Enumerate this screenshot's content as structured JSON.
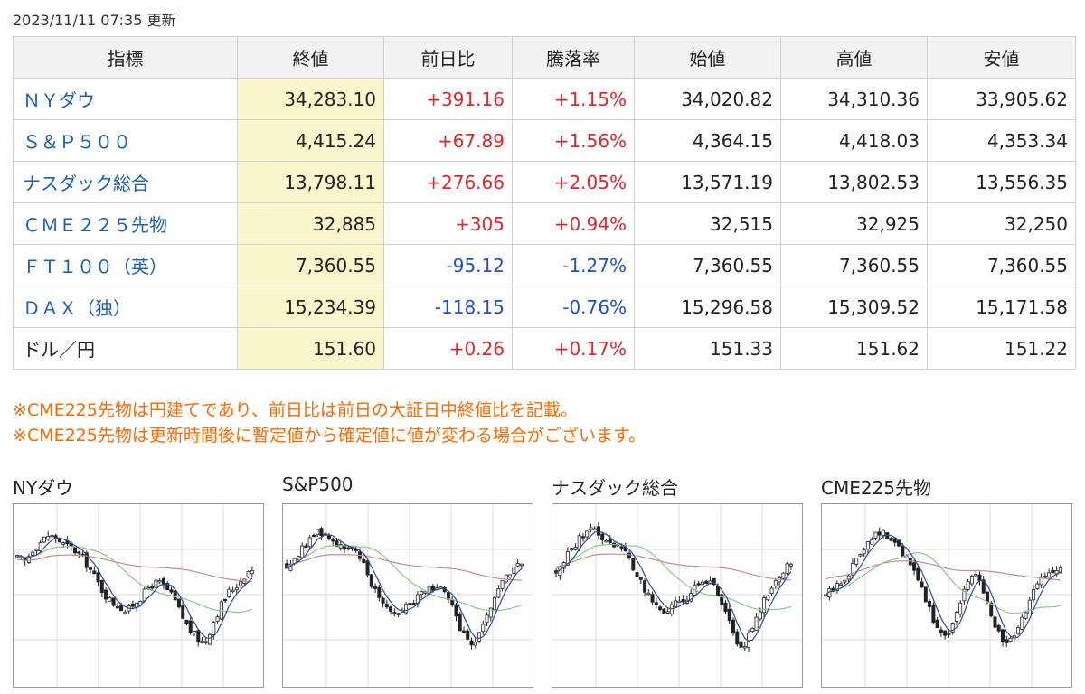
{
  "updated": "2023/11/11 07:35 更新",
  "headers": [
    "指標",
    "終値",
    "前日比",
    "騰落率",
    "始値",
    "高値",
    "安値"
  ],
  "rows": [
    {
      "name": "ＮＹダウ",
      "close": "34,283.10",
      "change": "+391.16",
      "pct": "+1.15%",
      "open": "34,020.82",
      "high": "34,310.36",
      "low": "33,905.62",
      "dir": "pos",
      "link": true
    },
    {
      "name": "Ｓ＆Ｐ５００",
      "close": "4,415.24",
      "change": "+67.89",
      "pct": "+1.56%",
      "open": "4,364.15",
      "high": "4,418.03",
      "low": "4,353.34",
      "dir": "pos",
      "link": true
    },
    {
      "name": "ナスダック総合",
      "close": "13,798.11",
      "change": "+276.66",
      "pct": "+2.05%",
      "open": "13,571.19",
      "high": "13,802.53",
      "low": "13,556.35",
      "dir": "pos",
      "link": true
    },
    {
      "name": "ＣＭＥ２２５先物",
      "close": "32,885",
      "change": "+305",
      "pct": "+0.94%",
      "open": "32,515",
      "high": "32,925",
      "low": "32,250",
      "dir": "pos",
      "link": true
    },
    {
      "name": "ＦＴ１００（英）",
      "close": "7,360.55",
      "change": "-95.12",
      "pct": "-1.27%",
      "open": "7,360.55",
      "high": "7,360.55",
      "low": "7,360.55",
      "dir": "neg",
      "link": true
    },
    {
      "name": "ＤＡＸ（独）",
      "close": "15,234.39",
      "change": "-118.15",
      "pct": "-0.76%",
      "open": "15,296.58",
      "high": "15,309.52",
      "low": "15,171.58",
      "dir": "neg",
      "link": true
    },
    {
      "name": "ドル／円",
      "close": "151.60",
      "change": "+0.26",
      "pct": "+0.17%",
      "open": "151.33",
      "high": "151.62",
      "low": "151.22",
      "dir": "pos",
      "link": false
    }
  ],
  "notes": [
    "※CME225先物は円建てであり、前日比は前日の大証日中終値比を記載。",
    "※CME225先物は更新時間後に暫定値から確定値に値が変わる場合がございます。"
  ],
  "colors": {
    "up": "#e0262b",
    "down": "#2350c8",
    "link": "#1a5fb4",
    "note": "#ff6a00",
    "close_bg": "#fbf7cc"
  },
  "charts": [
    {
      "title": "NYダウ",
      "shape": [
        0.72,
        0.7,
        0.78,
        0.82,
        0.86,
        0.84,
        0.8,
        0.78,
        0.74,
        0.68,
        0.6,
        0.52,
        0.46,
        0.44,
        0.4,
        0.46,
        0.5,
        0.56,
        0.58,
        0.54,
        0.48,
        0.38,
        0.3,
        0.24,
        0.22,
        0.34,
        0.44,
        0.52,
        0.56,
        0.62,
        0.66
      ]
    },
    {
      "title": "S&P500",
      "shape": [
        0.68,
        0.72,
        0.78,
        0.84,
        0.88,
        0.86,
        0.82,
        0.8,
        0.78,
        0.74,
        0.66,
        0.56,
        0.48,
        0.42,
        0.4,
        0.44,
        0.46,
        0.5,
        0.54,
        0.56,
        0.52,
        0.44,
        0.32,
        0.24,
        0.2,
        0.3,
        0.42,
        0.54,
        0.6,
        0.66,
        0.7
      ]
    },
    {
      "title": "ナスダック総合",
      "shape": [
        0.64,
        0.7,
        0.78,
        0.84,
        0.9,
        0.88,
        0.84,
        0.82,
        0.8,
        0.74,
        0.66,
        0.56,
        0.48,
        0.42,
        0.4,
        0.44,
        0.46,
        0.5,
        0.56,
        0.6,
        0.56,
        0.46,
        0.34,
        0.24,
        0.2,
        0.3,
        0.42,
        0.52,
        0.58,
        0.64,
        0.7
      ]
    },
    {
      "title": "CME225先物",
      "shape": [
        0.5,
        0.54,
        0.58,
        0.64,
        0.72,
        0.8,
        0.86,
        0.88,
        0.84,
        0.8,
        0.74,
        0.66,
        0.58,
        0.46,
        0.32,
        0.26,
        0.3,
        0.44,
        0.58,
        0.62,
        0.56,
        0.42,
        0.28,
        0.22,
        0.24,
        0.34,
        0.46,
        0.56,
        0.62,
        0.66,
        0.68
      ]
    }
  ]
}
